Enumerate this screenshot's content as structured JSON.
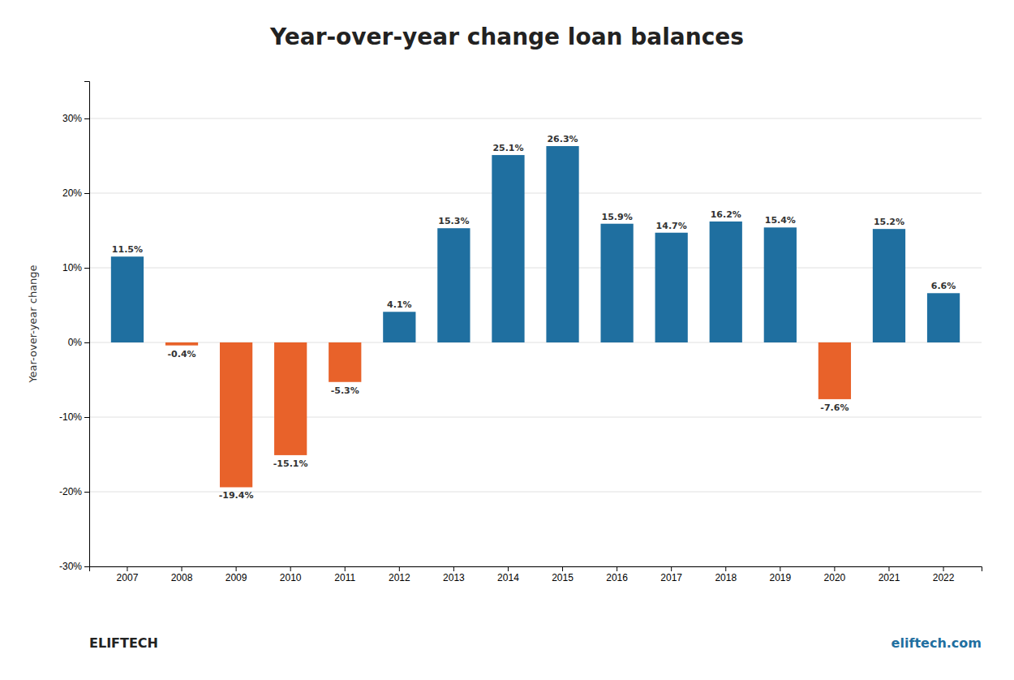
{
  "chart_data": {
    "type": "bar",
    "title": "Year-over-year change loan balances",
    "y_label": "Year-over-year change",
    "categories": [
      "2007",
      "2008",
      "2009",
      "2010",
      "2011",
      "2012",
      "2013",
      "2014",
      "2015",
      "2016",
      "2017",
      "2018",
      "2019",
      "2020",
      "2021",
      "2022"
    ],
    "values": [
      11.5,
      -0.4,
      -19.4,
      -15.1,
      -5.3,
      4.1,
      15.3,
      25.1,
      26.3,
      15.9,
      14.7,
      16.2,
      15.4,
      -7.6,
      15.2,
      6.6
    ],
    "value_labels": [
      "11.5%",
      "-0.4%",
      "-19.4%",
      "-15.1%",
      "-5.3%",
      "4.1%",
      "15.3%",
      "25.1%",
      "26.3%",
      "15.9%",
      "14.7%",
      "16.2%",
      "15.4%",
      "-7.6%",
      "15.2%",
      "6.6%"
    ],
    "colors": [
      "#1f6fa0",
      "#e8622a",
      "#e8622a",
      "#e8622a",
      "#e8622a",
      "#1f6fa0",
      "#1f6fa0",
      "#1f6fa0",
      "#1f6fa0",
      "#1f6fa0",
      "#1f6fa0",
      "#1f6fa0",
      "#1f6fa0",
      "#e8622a",
      "#1f6fa0",
      "#1f6fa0"
    ],
    "ylim": [
      -30,
      35
    ],
    "yticks": [
      {
        "value": -30,
        "label": "-30%"
      },
      {
        "value": -20,
        "label": "-20%"
      },
      {
        "value": -10,
        "label": "-10%"
      },
      {
        "value": 0,
        "label": "0%"
      },
      {
        "value": 10,
        "label": "10%"
      },
      {
        "value": 20,
        "label": "20%"
      },
      {
        "value": 30,
        "label": "30%"
      }
    ],
    "grid": true,
    "data_labels": true,
    "annotations": [
      "ELIFTECH",
      "eliftech.com"
    ]
  }
}
